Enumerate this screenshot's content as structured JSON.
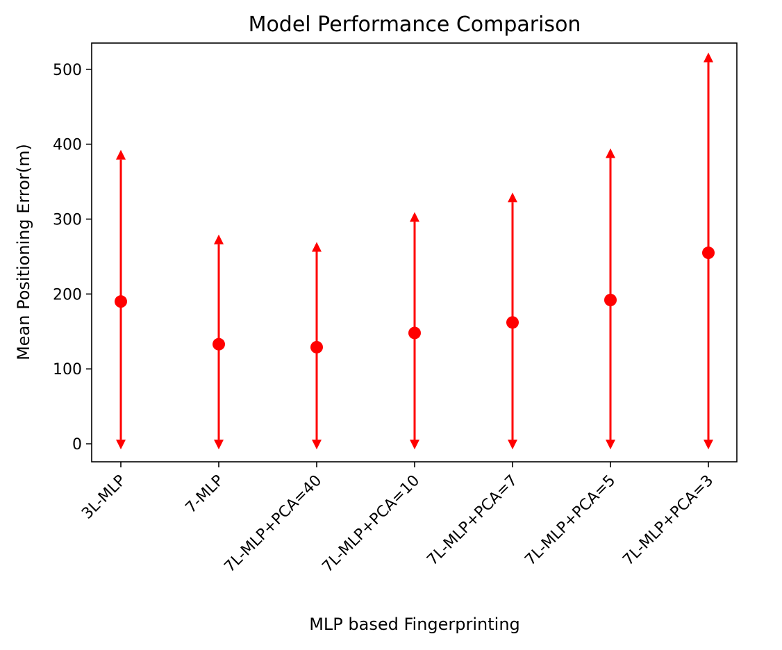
{
  "chart_data": {
    "type": "scatter",
    "title": "Model Performance Comparison",
    "xlabel": "MLP based Fingerprinting",
    "ylabel": "Mean Positioning Error(m)",
    "categories": [
      "3L-MLP",
      "7-MLP",
      "7L-MLP+PCA=40",
      "7L-MLP+PCA=10",
      "7L-MLP+PCA=7",
      "7L-MLP+PCA=5",
      "7L-MLP+PCA=3"
    ],
    "series": [
      {
        "values": [
          190,
          133,
          129,
          148,
          162,
          192,
          255
        ],
        "lower": [
          0,
          0,
          0,
          0,
          0,
          0,
          0
        ],
        "upper": [
          385,
          272,
          262,
          302,
          328,
          387,
          515
        ]
      }
    ],
    "ylim": [
      -24,
      535
    ],
    "yticks": [
      0,
      100,
      200,
      300,
      400,
      500
    ],
    "grid": false,
    "colors": {
      "series": "#ff0000",
      "axes": "#000000"
    }
  }
}
